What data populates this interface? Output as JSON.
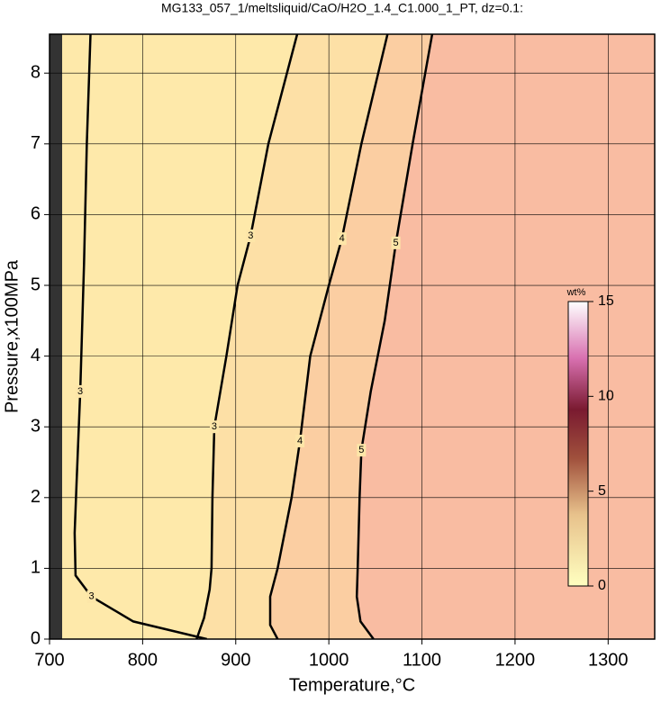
{
  "chart_data": {
    "type": "contour",
    "title": "MG133_057_1/meltsliquid/CaO/H2O_1.4_C1.000_1_PT, dz=0.1:",
    "x_label": "Temperature,°C",
    "y_label": "Pressure,x100MPa",
    "xlim": [
      700,
      1350
    ],
    "ylim": [
      0,
      8.55
    ],
    "xticks": [
      700,
      800,
      900,
      1000,
      1100,
      1200,
      1300
    ],
    "yticks": [
      0,
      1,
      2,
      3,
      4,
      5,
      6,
      7,
      8
    ],
    "grid": true,
    "contours": [
      {
        "level": 3,
        "x": [
          869,
          790,
          745,
          728,
          727,
          729,
          733,
          737,
          740,
          744
        ],
        "y": [
          0,
          0.25,
          0.6,
          0.9,
          1.5,
          2.2,
          3.5,
          5.3,
          7,
          8.55
        ]
      },
      {
        "level": 3,
        "x": [
          858,
          866,
          872,
          874,
          875,
          877,
          890,
          902,
          916,
          935,
          966
        ],
        "y": [
          0,
          0.3,
          0.7,
          1,
          2,
          3,
          4,
          5,
          5.7,
          7,
          8.55
        ]
      },
      {
        "level": 4,
        "x": [
          945,
          937,
          937,
          945,
          960,
          969,
          980,
          1000,
          1014,
          1035,
          1063
        ],
        "y": [
          0,
          0.2,
          0.6,
          1,
          2,
          2.8,
          4,
          5,
          5.66,
          7,
          8.55
        ]
      },
      {
        "level": 5,
        "x": [
          1048,
          1034,
          1030,
          1031,
          1033,
          1035,
          1045,
          1060,
          1072,
          1090,
          1111
        ],
        "y": [
          0,
          0.25,
          0.6,
          1,
          2,
          2.67,
          3.5,
          4.5,
          5.6,
          7,
          8.55
        ]
      }
    ],
    "colorbar": {
      "label": "wt%",
      "lim": [
        0,
        15
      ],
      "ticks": [
        0,
        5,
        10,
        15
      ]
    }
  }
}
